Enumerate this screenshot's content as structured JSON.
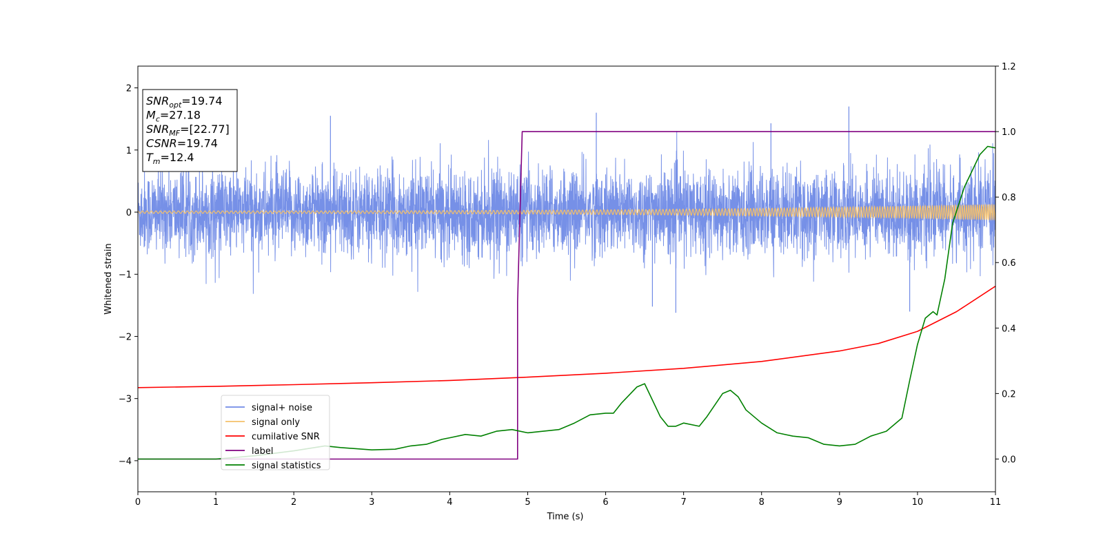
{
  "chart_data": {
    "type": "line",
    "title": "",
    "xlabel": "Time (s)",
    "ylabel": "Whitened strain",
    "y2label": "",
    "xlim": [
      0,
      11
    ],
    "ylim": [
      -4.5,
      2.35
    ],
    "y2lim": [
      -0.1,
      1.2
    ],
    "x_ticks": [
      0,
      1,
      2,
      3,
      4,
      5,
      6,
      7,
      8,
      9,
      10,
      11
    ],
    "y_ticks": [
      -4,
      -3,
      -2,
      -1,
      0,
      1,
      2
    ],
    "y2_ticks": [
      "0.0",
      "0.2",
      "0.4",
      "0.6",
      "0.8",
      "1.0",
      "1.2"
    ],
    "grid": false,
    "legend_placement": "lower-left",
    "series": [
      {
        "name": "signal+ noise",
        "axis": "left",
        "color": "#6f8ae6",
        "style": "dense-noise",
        "approx_amplitude": 0.55,
        "spike_values": [
          {
            "x": 2.47,
            "y": 1.55
          },
          {
            "x": 5.88,
            "y": 1.6
          },
          {
            "x": 8.12,
            "y": 1.43
          },
          {
            "x": 9.12,
            "y": 1.7
          },
          {
            "x": 6.6,
            "y": -1.52
          },
          {
            "x": 6.9,
            "y": -1.62
          },
          {
            "x": 9.9,
            "y": -1.6
          }
        ]
      },
      {
        "name": "signal only",
        "axis": "left",
        "color": "#f5c06a",
        "style": "chirp",
        "amplitude_start": 0.02,
        "amplitude_end": 0.13
      },
      {
        "name": "cumilative SNR",
        "axis": "right",
        "color": "#ff0000",
        "points": [
          [
            0,
            0.218
          ],
          [
            1,
            0.222
          ],
          [
            2,
            0.227
          ],
          [
            3,
            0.233
          ],
          [
            4,
            0.24
          ],
          [
            5,
            0.25
          ],
          [
            6,
            0.262
          ],
          [
            7,
            0.277
          ],
          [
            8,
            0.298
          ],
          [
            9,
            0.33
          ],
          [
            9.5,
            0.353
          ],
          [
            10,
            0.39
          ],
          [
            10.5,
            0.45
          ],
          [
            11,
            0.528
          ]
        ]
      },
      {
        "name": "label",
        "axis": "right",
        "color": "#800080",
        "points": [
          [
            0,
            0.0
          ],
          [
            4.87,
            0.0
          ],
          [
            4.87,
            0.48
          ],
          [
            4.93,
            1.0
          ],
          [
            11,
            1.0
          ]
        ]
      },
      {
        "name": "signal statistics",
        "axis": "right",
        "color": "#008000",
        "points": [
          [
            0,
            0.0
          ],
          [
            0.5,
            0.0
          ],
          [
            1,
            0.0
          ],
          [
            1.5,
            0.01
          ],
          [
            2,
            0.025
          ],
          [
            2.4,
            0.04
          ],
          [
            2.6,
            0.035
          ],
          [
            3,
            0.028
          ],
          [
            3.3,
            0.03
          ],
          [
            3.5,
            0.04
          ],
          [
            3.7,
            0.045
          ],
          [
            3.9,
            0.06
          ],
          [
            4,
            0.065
          ],
          [
            4.2,
            0.075
          ],
          [
            4.4,
            0.07
          ],
          [
            4.6,
            0.085
          ],
          [
            4.8,
            0.09
          ],
          [
            5,
            0.08
          ],
          [
            5.2,
            0.085
          ],
          [
            5.4,
            0.09
          ],
          [
            5.6,
            0.11
          ],
          [
            5.8,
            0.135
          ],
          [
            6,
            0.14
          ],
          [
            6.1,
            0.14
          ],
          [
            6.2,
            0.17
          ],
          [
            6.4,
            0.22
          ],
          [
            6.5,
            0.23
          ],
          [
            6.6,
            0.18
          ],
          [
            6.7,
            0.13
          ],
          [
            6.8,
            0.1
          ],
          [
            6.9,
            0.1
          ],
          [
            7,
            0.11
          ],
          [
            7.2,
            0.1
          ],
          [
            7.3,
            0.13
          ],
          [
            7.5,
            0.2
          ],
          [
            7.6,
            0.21
          ],
          [
            7.7,
            0.19
          ],
          [
            7.8,
            0.15
          ],
          [
            8,
            0.11
          ],
          [
            8.2,
            0.08
          ],
          [
            8.4,
            0.07
          ],
          [
            8.6,
            0.065
          ],
          [
            8.8,
            0.045
          ],
          [
            9,
            0.04
          ],
          [
            9.2,
            0.045
          ],
          [
            9.4,
            0.07
          ],
          [
            9.6,
            0.085
          ],
          [
            9.8,
            0.125
          ],
          [
            9.9,
            0.24
          ],
          [
            10,
            0.35
          ],
          [
            10.1,
            0.43
          ],
          [
            10.2,
            0.45
          ],
          [
            10.25,
            0.44
          ],
          [
            10.35,
            0.55
          ],
          [
            10.45,
            0.72
          ],
          [
            10.6,
            0.83
          ],
          [
            10.8,
            0.93
          ],
          [
            10.9,
            0.955
          ],
          [
            11,
            0.95
          ]
        ]
      }
    ],
    "legend_entries": [
      {
        "label": "signal+ noise",
        "color": "#6f8ae6"
      },
      {
        "label": "signal only",
        "color": "#f5c06a"
      },
      {
        "label": "cumilative SNR",
        "color": "#ff0000"
      },
      {
        "label": "label",
        "color": "#800080"
      },
      {
        "label": "signal statistics",
        "color": "#008000"
      }
    ],
    "annotations": [
      {
        "base": "SNR",
        "sub": "opt",
        "value": "=19.74",
        "italic": true
      },
      {
        "base": "M",
        "sub": "c",
        "value": "=27.18",
        "italic": true
      },
      {
        "base": "SNR",
        "sub": "MF",
        "value": "=[22.77]",
        "italic": true
      },
      {
        "base": "CSNR",
        "sub": "",
        "value": "=19.74",
        "italic": true
      },
      {
        "base": "T",
        "sub": "m",
        "value": "=12.4",
        "italic": true
      }
    ]
  }
}
